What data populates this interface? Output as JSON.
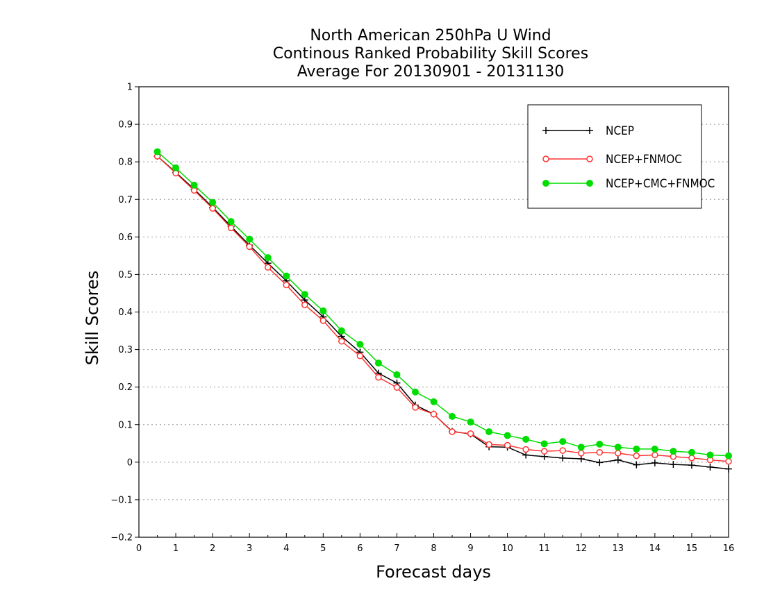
{
  "chart_data": {
    "type": "line",
    "title": [
      "North American 250hPa U Wind",
      "Continous Ranked Probability Skill Scores",
      "Average For 20130901 - 20131130"
    ],
    "xlabel": "Forecast days",
    "ylabel": "Skill Scores",
    "xlim": [
      0,
      16
    ],
    "ylim": [
      -0.2,
      1
    ],
    "xticks": [
      "0",
      "1",
      "2",
      "3",
      "4",
      "5",
      "6",
      "7",
      "8",
      "9",
      "10",
      "11",
      "12",
      "13",
      "14",
      "15",
      "16"
    ],
    "yticks": [
      "−0.2",
      "−0.1",
      "0",
      "0.1",
      "0.2",
      "0.3",
      "0.4",
      "0.5",
      "0.6",
      "0.7",
      "0.8",
      "0.9",
      "1"
    ],
    "grid": "horizontal dotted",
    "legend_position": "top-right",
    "x": [
      0.5,
      1,
      1.5,
      2,
      2.5,
      3,
      3.5,
      4,
      4.5,
      5,
      5.5,
      6,
      6.5,
      7,
      7.5,
      8,
      8.5,
      9,
      9.5,
      10,
      10.5,
      11,
      11.5,
      12,
      12.5,
      13,
      13.5,
      14,
      14.5,
      15,
      15.5,
      16
    ],
    "series": [
      {
        "name": "NCEP",
        "color": "#000000",
        "marker": "plus",
        "values": [
          0.815,
          0.772,
          0.727,
          0.679,
          0.628,
          0.578,
          0.53,
          0.483,
          0.432,
          0.387,
          0.335,
          0.293,
          0.237,
          0.211,
          0.152,
          0.128,
          0.082,
          0.075,
          0.041,
          0.04,
          0.019,
          0.015,
          0.011,
          0.009,
          -0.001,
          0.006,
          -0.007,
          -0.002,
          -0.006,
          -0.008,
          -0.013,
          -0.018
        ]
      },
      {
        "name": "NCEP+FNMOC",
        "color": "#ff3333",
        "marker": "open-circle",
        "values": [
          0.815,
          0.77,
          0.724,
          0.676,
          0.624,
          0.574,
          0.519,
          0.472,
          0.419,
          0.377,
          0.322,
          0.283,
          0.226,
          0.199,
          0.146,
          0.128,
          0.081,
          0.076,
          0.047,
          0.045,
          0.034,
          0.029,
          0.031,
          0.024,
          0.026,
          0.024,
          0.017,
          0.019,
          0.015,
          0.011,
          0.006,
          0.002
        ]
      },
      {
        "name": "NCEP+CMC+FNMOC",
        "color": "#00dd00",
        "marker": "filled-circle",
        "values": [
          0.827,
          0.784,
          0.738,
          0.692,
          0.641,
          0.594,
          0.545,
          0.496,
          0.447,
          0.403,
          0.35,
          0.314,
          0.264,
          0.233,
          0.187,
          0.161,
          0.122,
          0.107,
          0.081,
          0.071,
          0.061,
          0.049,
          0.055,
          0.04,
          0.048,
          0.04,
          0.035,
          0.035,
          0.029,
          0.026,
          0.019,
          0.017
        ]
      }
    ]
  }
}
